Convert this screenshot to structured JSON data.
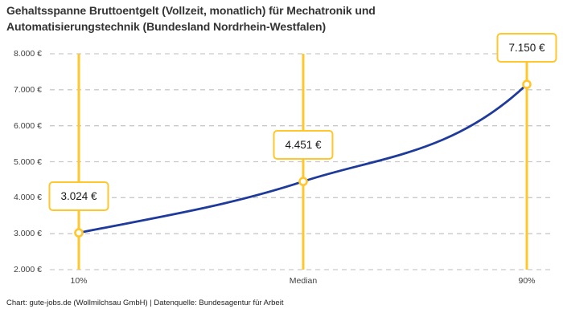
{
  "title": "Gehaltsspanne Bruttoentgelt (Vollzeit, monatlich) für Mechatronik und Automatisierungstechnik (Bundesland Nordrhein-Westfalen)",
  "footer": "Chart: gute-jobs.de (Wollmilchsau GmbH) | Datenquelle: Bundesagentur für Arbeit",
  "colors": {
    "accent_yellow": "#FFC72C",
    "line_blue": "#1E3A9B",
    "grid_gray": "#C9C9C9",
    "text_dark": "#333333"
  },
  "chart_data": {
    "type": "line",
    "title": "Gehaltsspanne Bruttoentgelt (Vollzeit, monatlich) für Mechatronik und Automatisierungstechnik (Bundesland Nordrhein-Westfalen)",
    "categories": [
      "10%",
      "Median",
      "90%"
    ],
    "values": [
      3024,
      4451,
      7150
    ],
    "point_labels": [
      "3.024 €",
      "4.451 €",
      "7.150 €"
    ],
    "series_unit": "EUR per month (gross, full-time)",
    "y_ticks": [
      "8.000 €",
      "7.000 €",
      "6.000 €",
      "5.000 €",
      "4.000 €",
      "3.000 €",
      "2.000 €"
    ],
    "y_tick_values": [
      8000,
      7000,
      6000,
      5000,
      4000,
      3000,
      2000
    ],
    "ylim": [
      2000,
      8000
    ],
    "xlabel": "",
    "ylabel": "",
    "grid": "horizontal-dashed",
    "legend": "none",
    "annotations": "each percentile has a vertical yellow marker line with a white callout box showing the value"
  }
}
